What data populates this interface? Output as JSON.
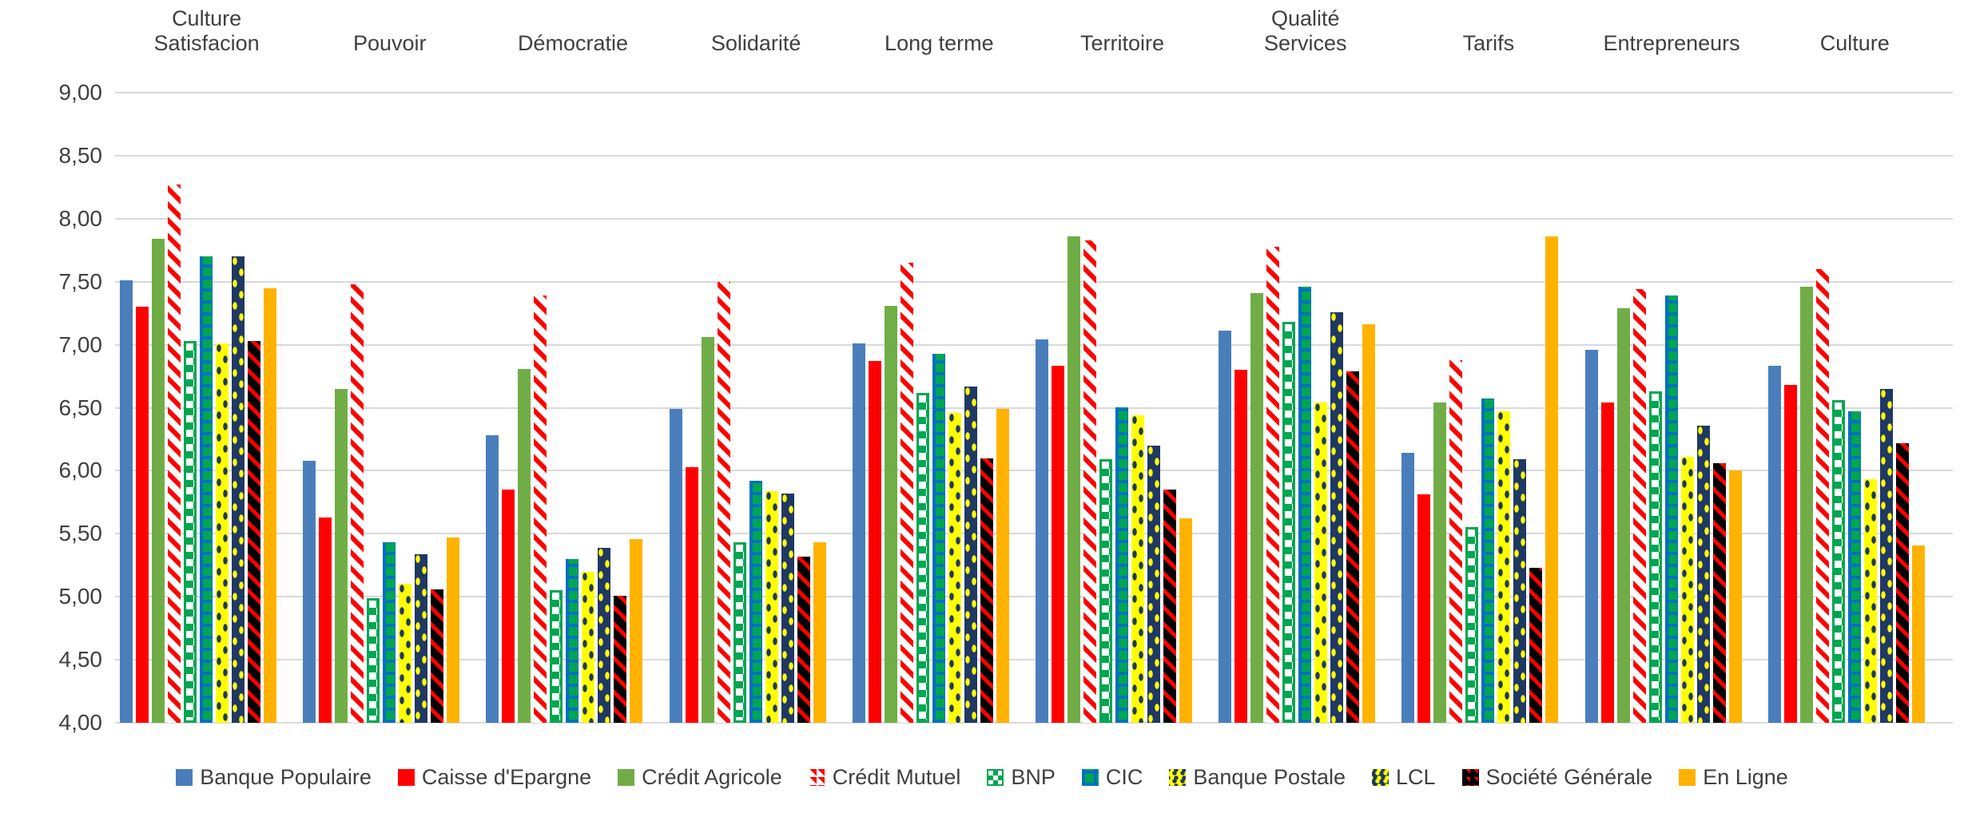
{
  "chart_data": {
    "type": "bar",
    "title": "",
    "categories": [
      "Culture\nSatisfacion",
      "Pouvoir",
      "Démocratie",
      "Solidarité",
      "Long terme",
      "Territoire",
      "Qualité\nServices",
      "Tarifs",
      "Entrepreneurs",
      "Culture"
    ],
    "series": [
      {
        "name": "Banque Populaire",
        "color": "#4A7EBB",
        "pattern": "solid-blue",
        "values": [
          7.51,
          6.08,
          6.28,
          6.49,
          7.01,
          7.04,
          7.11,
          6.14,
          6.96,
          6.83
        ]
      },
      {
        "name": "Caisse d'Epargne",
        "color": "#FF0000",
        "pattern": "solid-red",
        "values": [
          7.3,
          5.63,
          5.85,
          6.03,
          6.87,
          6.83,
          6.8,
          5.81,
          6.54,
          6.68
        ]
      },
      {
        "name": "Crédit Agricole",
        "color": "#70AD47",
        "pattern": "solid-green",
        "values": [
          7.84,
          6.65,
          6.81,
          7.06,
          7.31,
          7.86,
          7.41,
          6.54,
          7.29,
          7.46
        ]
      },
      {
        "name": "Crédit Mutuel",
        "color": "#FF0000",
        "pattern": "diag-red-on-white",
        "values": [
          8.27,
          7.48,
          7.39,
          7.5,
          7.65,
          7.83,
          7.78,
          6.88,
          7.44,
          7.6
        ]
      },
      {
        "name": "BNP",
        "color": "#00A651",
        "pattern": "checker-green",
        "values": [
          7.03,
          4.99,
          5.05,
          5.43,
          6.62,
          6.09,
          7.18,
          5.55,
          6.63,
          6.56
        ]
      },
      {
        "name": "CIC",
        "color": "#00A651",
        "pattern": "grid-blue-on-green",
        "values": [
          7.7,
          5.43,
          5.3,
          5.92,
          6.93,
          6.5,
          7.46,
          6.57,
          7.39,
          6.47
        ]
      },
      {
        "name": "Banque Postale",
        "color": "#FFFF00",
        "pattern": "dots-navy-on-yellow",
        "values": [
          7.01,
          5.1,
          5.2,
          5.84,
          6.46,
          6.44,
          6.54,
          6.47,
          6.11,
          5.93
        ]
      },
      {
        "name": "LCL",
        "color": "#1F3864",
        "pattern": "dots-yellow-on-navy",
        "values": [
          7.7,
          5.34,
          5.39,
          5.82,
          6.67,
          6.2,
          7.26,
          6.09,
          6.36,
          6.65
        ]
      },
      {
        "name": "Société Générale",
        "color": "#000000",
        "pattern": "diag-red-on-black",
        "values": [
          7.03,
          5.06,
          5.01,
          5.32,
          6.1,
          5.85,
          6.79,
          5.23,
          6.06,
          6.22
        ]
      },
      {
        "name": "En Ligne",
        "color": "#FFB300",
        "pattern": "solid-orange",
        "values": [
          7.45,
          5.47,
          5.46,
          5.43,
          6.49,
          5.62,
          7.16,
          7.86,
          6.0,
          5.41
        ]
      }
    ],
    "y_axis": {
      "min": 4.0,
      "max": 9.0,
      "step": 0.5,
      "tick_labels": [
        "9,00",
        "8,50",
        "8,00",
        "7,50",
        "7,00",
        "6,50",
        "6,00",
        "5,50",
        "5,00",
        "4,50",
        "4,00"
      ]
    },
    "grid": true,
    "gridline_color": "#D9D9D9",
    "text_color": "#404040",
    "legend_position": "bottom",
    "category_labels_position": "top"
  }
}
